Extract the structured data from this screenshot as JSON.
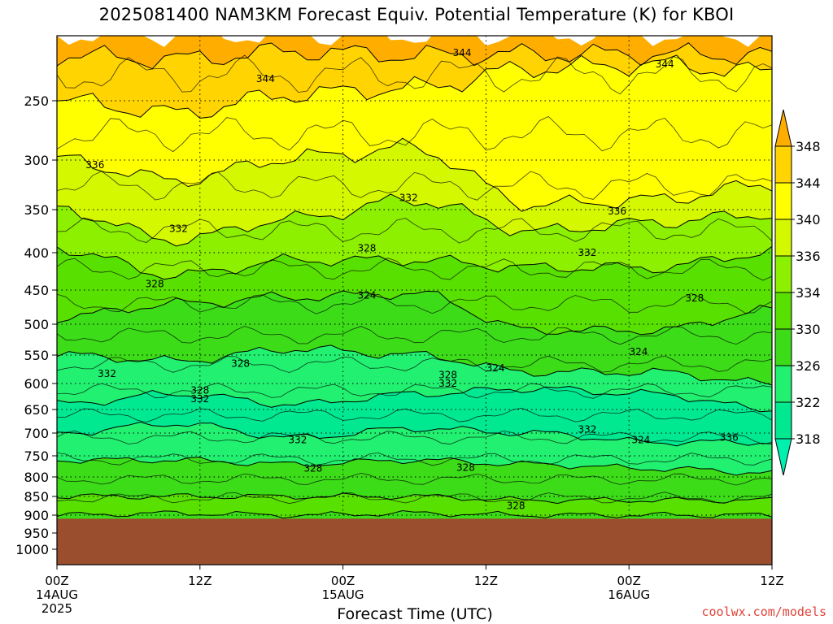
{
  "title": "2025081400 NAM3KM Forecast Equiv. Potential Temperature (K) for KBOI",
  "credit": "coolwx.com/models",
  "colors": {
    "ground": "#9b4e2d",
    "c318": "#00e890",
    "c322": "#22f070",
    "c326": "#3cdc18",
    "c330": "#58e000",
    "c334": "#8cf000",
    "c338": "#d4f800",
    "c342": "#ffff00",
    "c346": "#ffd400",
    "c350": "#ffae00"
  },
  "chart_data": {
    "type": "heatmap",
    "title": "2025081400 NAM3KM Forecast Equiv. Potential Temperature (K) for KBOI",
    "xlabel": "Forecast Time (UTC)",
    "ylabel": "",
    "x_ticks": [
      {
        "label": "00Z",
        "sub1": "14AUG",
        "sub2": "2025",
        "hour": 0
      },
      {
        "label": "12Z",
        "sub1": "",
        "sub2": "",
        "hour": 12
      },
      {
        "label": "00Z",
        "sub1": "15AUG",
        "sub2": "",
        "hour": 24
      },
      {
        "label": "12Z",
        "sub1": "",
        "sub2": "",
        "hour": 36
      },
      {
        "label": "00Z",
        "sub1": "16AUG",
        "sub2": "",
        "hour": 48
      },
      {
        "label": "12Z",
        "sub1": "",
        "sub2": "",
        "hour": 60
      }
    ],
    "y_ticks": [
      250,
      300,
      350,
      400,
      450,
      500,
      550,
      600,
      650,
      700,
      750,
      800,
      850,
      900,
      950,
      1000
    ],
    "ylim_hPa": [
      200,
      1050
    ],
    "xlim_hours": [
      0,
      60
    ],
    "colorbar": {
      "labels": [
        "348",
        "344",
        "340",
        "336",
        "334",
        "330",
        "326",
        "322",
        "318"
      ],
      "colors": [
        "#ffae00",
        "#ffd400",
        "#ffff00",
        "#d4f800",
        "#8cf000",
        "#58e000",
        "#3cdc18",
        "#22f070",
        "#00e890",
        "#00f0b0"
      ]
    },
    "surface_pressure_hPa": 910,
    "bands": [
      {
        "value": 350,
        "profile_hPa": [
          200,
          200,
          200,
          200,
          200,
          200,
          200
        ]
      },
      {
        "value": 346,
        "profile_hPa": [
          215,
          218,
          212,
          215,
          214,
          214,
          215
        ]
      },
      {
        "value": 342,
        "profile_hPa": [
          250,
          260,
          245,
          240,
          225,
          222,
          228
        ]
      },
      {
        "value": 338,
        "profile_hPa": [
          300,
          320,
          298,
          290,
          345,
          340,
          325
        ]
      },
      {
        "value": 334,
        "profile_hPa": [
          350,
          385,
          360,
          340,
          375,
          365,
          355
        ]
      },
      {
        "value": 330,
        "profile_hPa": [
          395,
          430,
          410,
          410,
          420,
          420,
          400
        ]
      },
      {
        "value": 326,
        "profile_hPa": [
          490,
          470,
          460,
          455,
          510,
          510,
          480
        ]
      },
      {
        "value": 322,
        "profile_hPa": [
          550,
          560,
          540,
          550,
          580,
          580,
          600
        ]
      },
      {
        "value": 318,
        "profile_hPa": [
          640,
          620,
          640,
          620,
          610,
          620,
          650
        ]
      },
      {
        "value": 322,
        "profile_hPa": [
          700,
          680,
          710,
          690,
          700,
          720,
          720
        ]
      },
      {
        "value": 326,
        "profile_hPa": [
          760,
          760,
          770,
          760,
          770,
          780,
          790
        ]
      },
      {
        "value": 330,
        "profile_hPa": [
          850,
          850,
          850,
          850,
          860,
          860,
          860
        ]
      },
      {
        "value": 326,
        "profile_hPa": [
          900,
          895,
          900,
          895,
          900,
          900,
          900
        ]
      }
    ],
    "contour_labels": [
      {
        "text": "344",
        "hour": 34.0,
        "hPa": 213
      },
      {
        "text": "344",
        "hour": 17.5,
        "hPa": 233
      },
      {
        "text": "344",
        "hour": 51.0,
        "hPa": 222
      },
      {
        "text": "336",
        "hour": 3.2,
        "hPa": 305
      },
      {
        "text": "332",
        "hour": 29.5,
        "hPa": 338
      },
      {
        "text": "336",
        "hour": 47.0,
        "hPa": 352
      },
      {
        "text": "332",
        "hour": 10.2,
        "hPa": 372
      },
      {
        "text": "328",
        "hour": 26.0,
        "hPa": 395
      },
      {
        "text": "332",
        "hour": 44.5,
        "hPa": 400
      },
      {
        "text": "328",
        "hour": 8.2,
        "hPa": 442
      },
      {
        "text": "324",
        "hour": 26.0,
        "hPa": 458
      },
      {
        "text": "328",
        "hour": 53.5,
        "hPa": 462
      },
      {
        "text": "324",
        "hour": 48.8,
        "hPa": 545
      },
      {
        "text": "328",
        "hour": 15.4,
        "hPa": 565
      },
      {
        "text": "332",
        "hour": 4.2,
        "hPa": 583
      },
      {
        "text": "324",
        "hour": 36.8,
        "hPa": 573
      },
      {
        "text": "328",
        "hour": 32.8,
        "hPa": 585
      },
      {
        "text": "332",
        "hour": 32.8,
        "hPa": 600
      },
      {
        "text": "328",
        "hour": 12.0,
        "hPa": 613
      },
      {
        "text": "332",
        "hour": 12.0,
        "hPa": 630
      },
      {
        "text": "332",
        "hour": 20.2,
        "hPa": 715
      },
      {
        "text": "332",
        "hour": 44.5,
        "hPa": 692
      },
      {
        "text": "324",
        "hour": 49.0,
        "hPa": 715
      },
      {
        "text": "336",
        "hour": 56.4,
        "hPa": 710
      },
      {
        "text": "328",
        "hour": 21.5,
        "hPa": 780
      },
      {
        "text": "328",
        "hour": 34.3,
        "hPa": 778
      },
      {
        "text": "328",
        "hour": 38.5,
        "hPa": 875
      }
    ]
  }
}
